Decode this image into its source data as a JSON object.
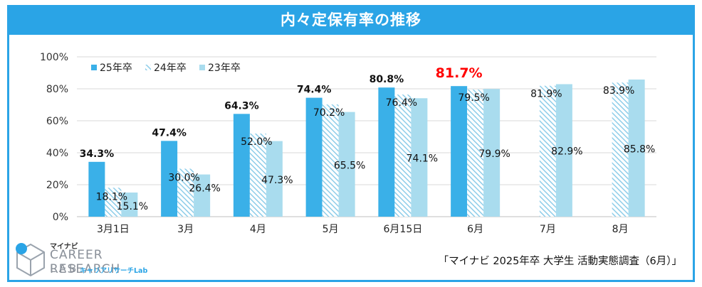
{
  "title": "内々定保有率の推移",
  "source": "「マイナビ 2025年卒 大学生 活動実態調査（6月）」",
  "logo": {
    "top": "マイナビ",
    "main": "CAREER RESEARCH",
    "lab": "LAB",
    "sub": "キャリアリサーチLab"
  },
  "colors": {
    "accent": "#2aa4e6",
    "s25": "#3ab0e8",
    "s24": "#8ecde9",
    "s23": "#a9dcee",
    "highlight": "#ff0000"
  },
  "chart_data": {
    "type": "bar",
    "title": "内々定保有率の推移",
    "categories": [
      "3月1日",
      "3月",
      "4月",
      "5月",
      "6月15日",
      "6月",
      "7月",
      "8月"
    ],
    "yticks": [
      "0%",
      "20%",
      "40%",
      "60%",
      "80%",
      "100%"
    ],
    "ylim": [
      0,
      100
    ],
    "legend_position": "top-left",
    "series": [
      {
        "name": "25年卒",
        "values": [
          34.3,
          47.4,
          64.3,
          74.4,
          80.8,
          81.7,
          null,
          null
        ],
        "labels": [
          "34.3%",
          "47.4%",
          "64.3%",
          "74.4%",
          "80.8%",
          "81.7%",
          "",
          ""
        ]
      },
      {
        "name": "24年卒",
        "values": [
          18.1,
          30.0,
          52.0,
          70.2,
          76.4,
          79.5,
          81.9,
          83.9
        ],
        "labels": [
          "18.1%",
          "30.0%",
          "52.0%",
          "70.2%",
          "76.4%",
          "79.5%",
          "81.9%",
          "83.9%"
        ]
      },
      {
        "name": "23年卒",
        "values": [
          15.1,
          26.4,
          47.3,
          65.5,
          74.1,
          79.9,
          82.9,
          85.8
        ],
        "labels": [
          "15.1%",
          "26.4%",
          "47.3%",
          "65.5%",
          "74.1%",
          "79.9%",
          "82.9%",
          "85.8%"
        ]
      }
    ]
  }
}
